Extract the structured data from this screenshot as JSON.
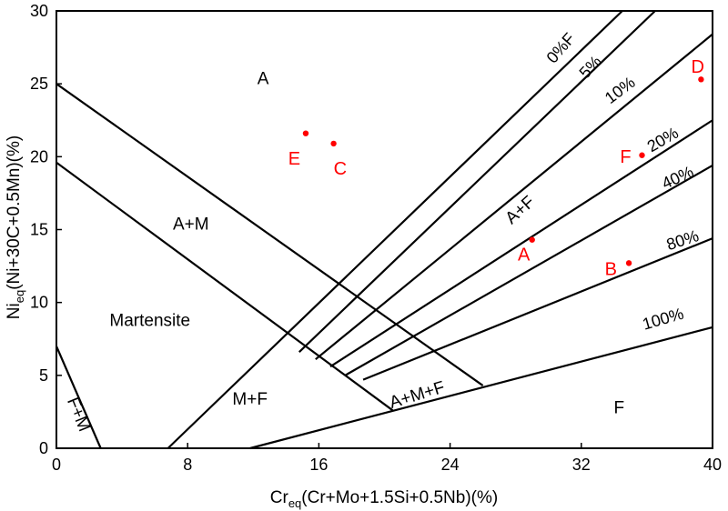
{
  "chart_data": {
    "type": "line",
    "title": "",
    "xlabel": {
      "main": "Cr",
      "sub": "eq",
      "rest": "(Cr+Mo+1.5Si+0.5Nb)(%)"
    },
    "ylabel": {
      "main": "Ni",
      "sub": "eq",
      "rest": "(Ni+30C+0.5Mn)(%)"
    },
    "xlim": [
      0,
      40
    ],
    "ylim": [
      0,
      30
    ],
    "xticks": [
      "0",
      "8",
      "16",
      "24",
      "32",
      "40"
    ],
    "yticks": [
      "0",
      "5",
      "10",
      "15",
      "20",
      "25",
      "30"
    ],
    "grid": false,
    "boundaries": [
      {
        "x": [
          0,
          26
        ],
        "y": [
          25,
          4.3
        ]
      },
      {
        "x": [
          0,
          20.5
        ],
        "y": [
          19.6,
          2.6
        ]
      },
      {
        "x": [
          0,
          2.7
        ],
        "y": [
          7,
          0
        ]
      },
      {
        "x": [
          11.8,
          40
        ],
        "y": [
          0,
          8.3
        ]
      },
      {
        "x": [
          6.8,
          34.5
        ],
        "y": [
          0,
          30
        ]
      },
      {
        "x": [
          14.8,
          36.5
        ],
        "y": [
          6.6,
          30
        ]
      },
      {
        "x": [
          15.8,
          40
        ],
        "y": [
          6.1,
          28.4
        ]
      },
      {
        "x": [
          16.7,
          40
        ],
        "y": [
          5.6,
          22.5
        ]
      },
      {
        "x": [
          17.6,
          40
        ],
        "y": [
          5.0,
          19.4
        ]
      },
      {
        "x": [
          18.7,
          40
        ],
        "y": [
          4.7,
          14.4
        ]
      }
    ],
    "regions": [
      {
        "label": "A",
        "x": 12.6,
        "y": 25.3
      },
      {
        "label": "A+M",
        "x": 8.2,
        "y": 15.3
      },
      {
        "label": "Martensite",
        "x": 5.7,
        "y": 8.7
      },
      {
        "label": "M+F",
        "x": 11.8,
        "y": 3.3
      },
      {
        "label": "A+F",
        "x": 28.3,
        "y": 16.3
      },
      {
        "label": "A+M+F",
        "x": 22.0,
        "y": 3.6
      },
      {
        "label": "F",
        "x": 34.3,
        "y": 2.7
      },
      {
        "label": "F+M",
        "x": 1.3,
        "y": 2.3
      }
    ],
    "isolines": [
      {
        "label": "0%F",
        "x": 30.8,
        "y": 27.4
      },
      {
        "label": "5%",
        "x": 32.6,
        "y": 26.1
      },
      {
        "label": "10%",
        "x": 34.4,
        "y": 24.5
      },
      {
        "label": "20%",
        "x": 37.0,
        "y": 21.1
      },
      {
        "label": "40%",
        "x": 37.9,
        "y": 18.5
      },
      {
        "label": "80%",
        "x": 38.2,
        "y": 14.2
      },
      {
        "label": "100%",
        "x": 37.0,
        "y": 8.8
      }
    ],
    "points": [
      {
        "label": "A",
        "x": 29.0,
        "y": 14.3,
        "lx": 28.5,
        "ly": 13.2
      },
      {
        "label": "B",
        "x": 34.9,
        "y": 12.7,
        "lx": 33.8,
        "ly": 12.2
      },
      {
        "label": "C",
        "x": 16.9,
        "y": 20.9,
        "lx": 17.3,
        "ly": 19.1
      },
      {
        "label": "D",
        "x": 39.3,
        "y": 25.3,
        "lx": 39.1,
        "ly": 26.1
      },
      {
        "label": "E",
        "x": 15.2,
        "y": 21.6,
        "lx": 14.5,
        "ly": 19.8
      },
      {
        "label": "F",
        "x": 35.7,
        "y": 20.1,
        "lx": 34.7,
        "ly": 19.9
      }
    ],
    "colors": {
      "points": "#ff0000",
      "lines": "#000000"
    }
  }
}
